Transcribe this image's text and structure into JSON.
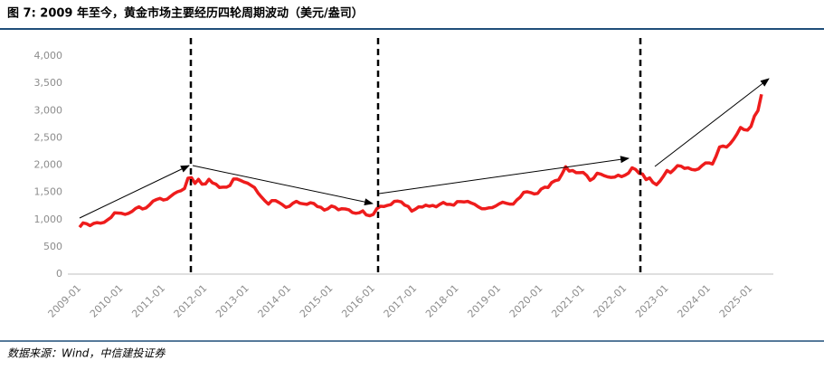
{
  "chart_data": {
    "type": "line",
    "title": "图 7: 2009 年至今，黄金市场主要经历四轮周期波动（美元/盎司）",
    "source": "数据来源：Wind，中信建投证券",
    "x": [
      "2009-01",
      "2009-02",
      "2009-03",
      "2009-04",
      "2009-05",
      "2009-06",
      "2009-07",
      "2009-08",
      "2009-09",
      "2009-10",
      "2009-11",
      "2009-12",
      "2010-01",
      "2010-02",
      "2010-03",
      "2010-04",
      "2010-05",
      "2010-06",
      "2010-07",
      "2010-08",
      "2010-09",
      "2010-10",
      "2010-11",
      "2010-12",
      "2011-01",
      "2011-02",
      "2011-03",
      "2011-04",
      "2011-05",
      "2011-06",
      "2011-07",
      "2011-08",
      "2011-09",
      "2011-10",
      "2011-11",
      "2011-12",
      "2012-01",
      "2012-02",
      "2012-03",
      "2012-04",
      "2012-05",
      "2012-06",
      "2012-07",
      "2012-08",
      "2012-09",
      "2012-10",
      "2012-11",
      "2012-12",
      "2013-01",
      "2013-02",
      "2013-03",
      "2013-04",
      "2013-05",
      "2013-06",
      "2013-07",
      "2013-08",
      "2013-09",
      "2013-10",
      "2013-11",
      "2013-12",
      "2014-01",
      "2014-02",
      "2014-03",
      "2014-04",
      "2014-05",
      "2014-06",
      "2014-07",
      "2014-08",
      "2014-09",
      "2014-10",
      "2014-11",
      "2014-12",
      "2015-01",
      "2015-02",
      "2015-03",
      "2015-04",
      "2015-05",
      "2015-06",
      "2015-07",
      "2015-08",
      "2015-09",
      "2015-10",
      "2015-11",
      "2015-12",
      "2016-01",
      "2016-02",
      "2016-03",
      "2016-04",
      "2016-05",
      "2016-06",
      "2016-07",
      "2016-08",
      "2016-09",
      "2016-10",
      "2016-11",
      "2016-12",
      "2017-01",
      "2017-02",
      "2017-03",
      "2017-04",
      "2017-05",
      "2017-06",
      "2017-07",
      "2017-08",
      "2017-09",
      "2017-10",
      "2017-11",
      "2017-12",
      "2018-01",
      "2018-02",
      "2018-03",
      "2018-04",
      "2018-05",
      "2018-06",
      "2018-07",
      "2018-08",
      "2018-09",
      "2018-10",
      "2018-11",
      "2018-12",
      "2019-01",
      "2019-02",
      "2019-03",
      "2019-04",
      "2019-05",
      "2019-06",
      "2019-07",
      "2019-08",
      "2019-09",
      "2019-10",
      "2019-11",
      "2019-12",
      "2020-01",
      "2020-02",
      "2020-03",
      "2020-04",
      "2020-05",
      "2020-06",
      "2020-07",
      "2020-08",
      "2020-09",
      "2020-10",
      "2020-11",
      "2020-12",
      "2021-01",
      "2021-02",
      "2021-03",
      "2021-04",
      "2021-05",
      "2021-06",
      "2021-07",
      "2021-08",
      "2021-09",
      "2021-10",
      "2021-11",
      "2021-12",
      "2022-01",
      "2022-02",
      "2022-03",
      "2022-04",
      "2022-05",
      "2022-06",
      "2022-07",
      "2022-08",
      "2022-09",
      "2022-10",
      "2022-11",
      "2022-12",
      "2023-01",
      "2023-02",
      "2023-03",
      "2023-04",
      "2023-05",
      "2023-06",
      "2023-07",
      "2023-08",
      "2023-09",
      "2023-10",
      "2023-11",
      "2023-12",
      "2024-01",
      "2024-02",
      "2024-03",
      "2024-04",
      "2024-05",
      "2024-06",
      "2024-07",
      "2024-08",
      "2024-09",
      "2024-10",
      "2024-11",
      "2024-12",
      "2025-01",
      "2025-02",
      "2025-03",
      "2025-04"
    ],
    "values": [
      860,
      940,
      925,
      890,
      930,
      945,
      935,
      950,
      995,
      1040,
      1125,
      1120,
      1115,
      1095,
      1115,
      1150,
      1205,
      1235,
      1195,
      1215,
      1270,
      1340,
      1370,
      1390,
      1360,
      1375,
      1425,
      1475,
      1510,
      1530,
      1570,
      1760,
      1770,
      1665,
      1740,
      1650,
      1655,
      1740,
      1675,
      1650,
      1590,
      1595,
      1595,
      1625,
      1745,
      1745,
      1720,
      1690,
      1670,
      1630,
      1590,
      1490,
      1415,
      1345,
      1285,
      1350,
      1350,
      1315,
      1275,
      1225,
      1245,
      1300,
      1335,
      1300,
      1290,
      1280,
      1310,
      1295,
      1240,
      1225,
      1175,
      1200,
      1250,
      1230,
      1180,
      1200,
      1195,
      1180,
      1130,
      1115,
      1125,
      1160,
      1085,
      1070,
      1095,
      1200,
      1245,
      1240,
      1260,
      1275,
      1335,
      1340,
      1325,
      1265,
      1240,
      1155,
      1190,
      1235,
      1230,
      1265,
      1245,
      1260,
      1235,
      1280,
      1315,
      1280,
      1280,
      1265,
      1330,
      1330,
      1325,
      1335,
      1305,
      1280,
      1235,
      1200,
      1200,
      1215,
      1220,
      1250,
      1290,
      1320,
      1300,
      1285,
      1285,
      1360,
      1410,
      1500,
      1510,
      1495,
      1470,
      1480,
      1560,
      1595,
      1590,
      1680,
      1715,
      1730,
      1840,
      1970,
      1890,
      1900,
      1860,
      1860,
      1865,
      1810,
      1720,
      1760,
      1850,
      1835,
      1805,
      1785,
      1775,
      1780,
      1815,
      1790,
      1815,
      1855,
      1950,
      1920,
      1850,
      1835,
      1735,
      1765,
      1680,
      1640,
      1710,
      1800,
      1900,
      1860,
      1920,
      1990,
      1980,
      1940,
      1950,
      1920,
      1910,
      1930,
      1990,
      2040,
      2040,
      2020,
      2160,
      2330,
      2350,
      2330,
      2390,
      2470,
      2570,
      2690,
      2650,
      2640,
      2710,
      2900,
      3000,
      3300
    ],
    "color": "#ee1c1c",
    "ylim": [
      0,
      4000
    ],
    "yticks": [
      0,
      500,
      {
        "value": 1000,
        "label": "1,000"
      },
      {
        "value": 1500,
        "label": "1,500"
      },
      {
        "value": 2000,
        "label": "2,000"
      },
      {
        "value": 2500,
        "label": "2,500"
      },
      {
        "value": 3000,
        "label": "3,000"
      },
      {
        "value": 3500,
        "label": "3,500"
      },
      {
        "value": 4000,
        "label": "4,000"
      }
    ]
  }
}
